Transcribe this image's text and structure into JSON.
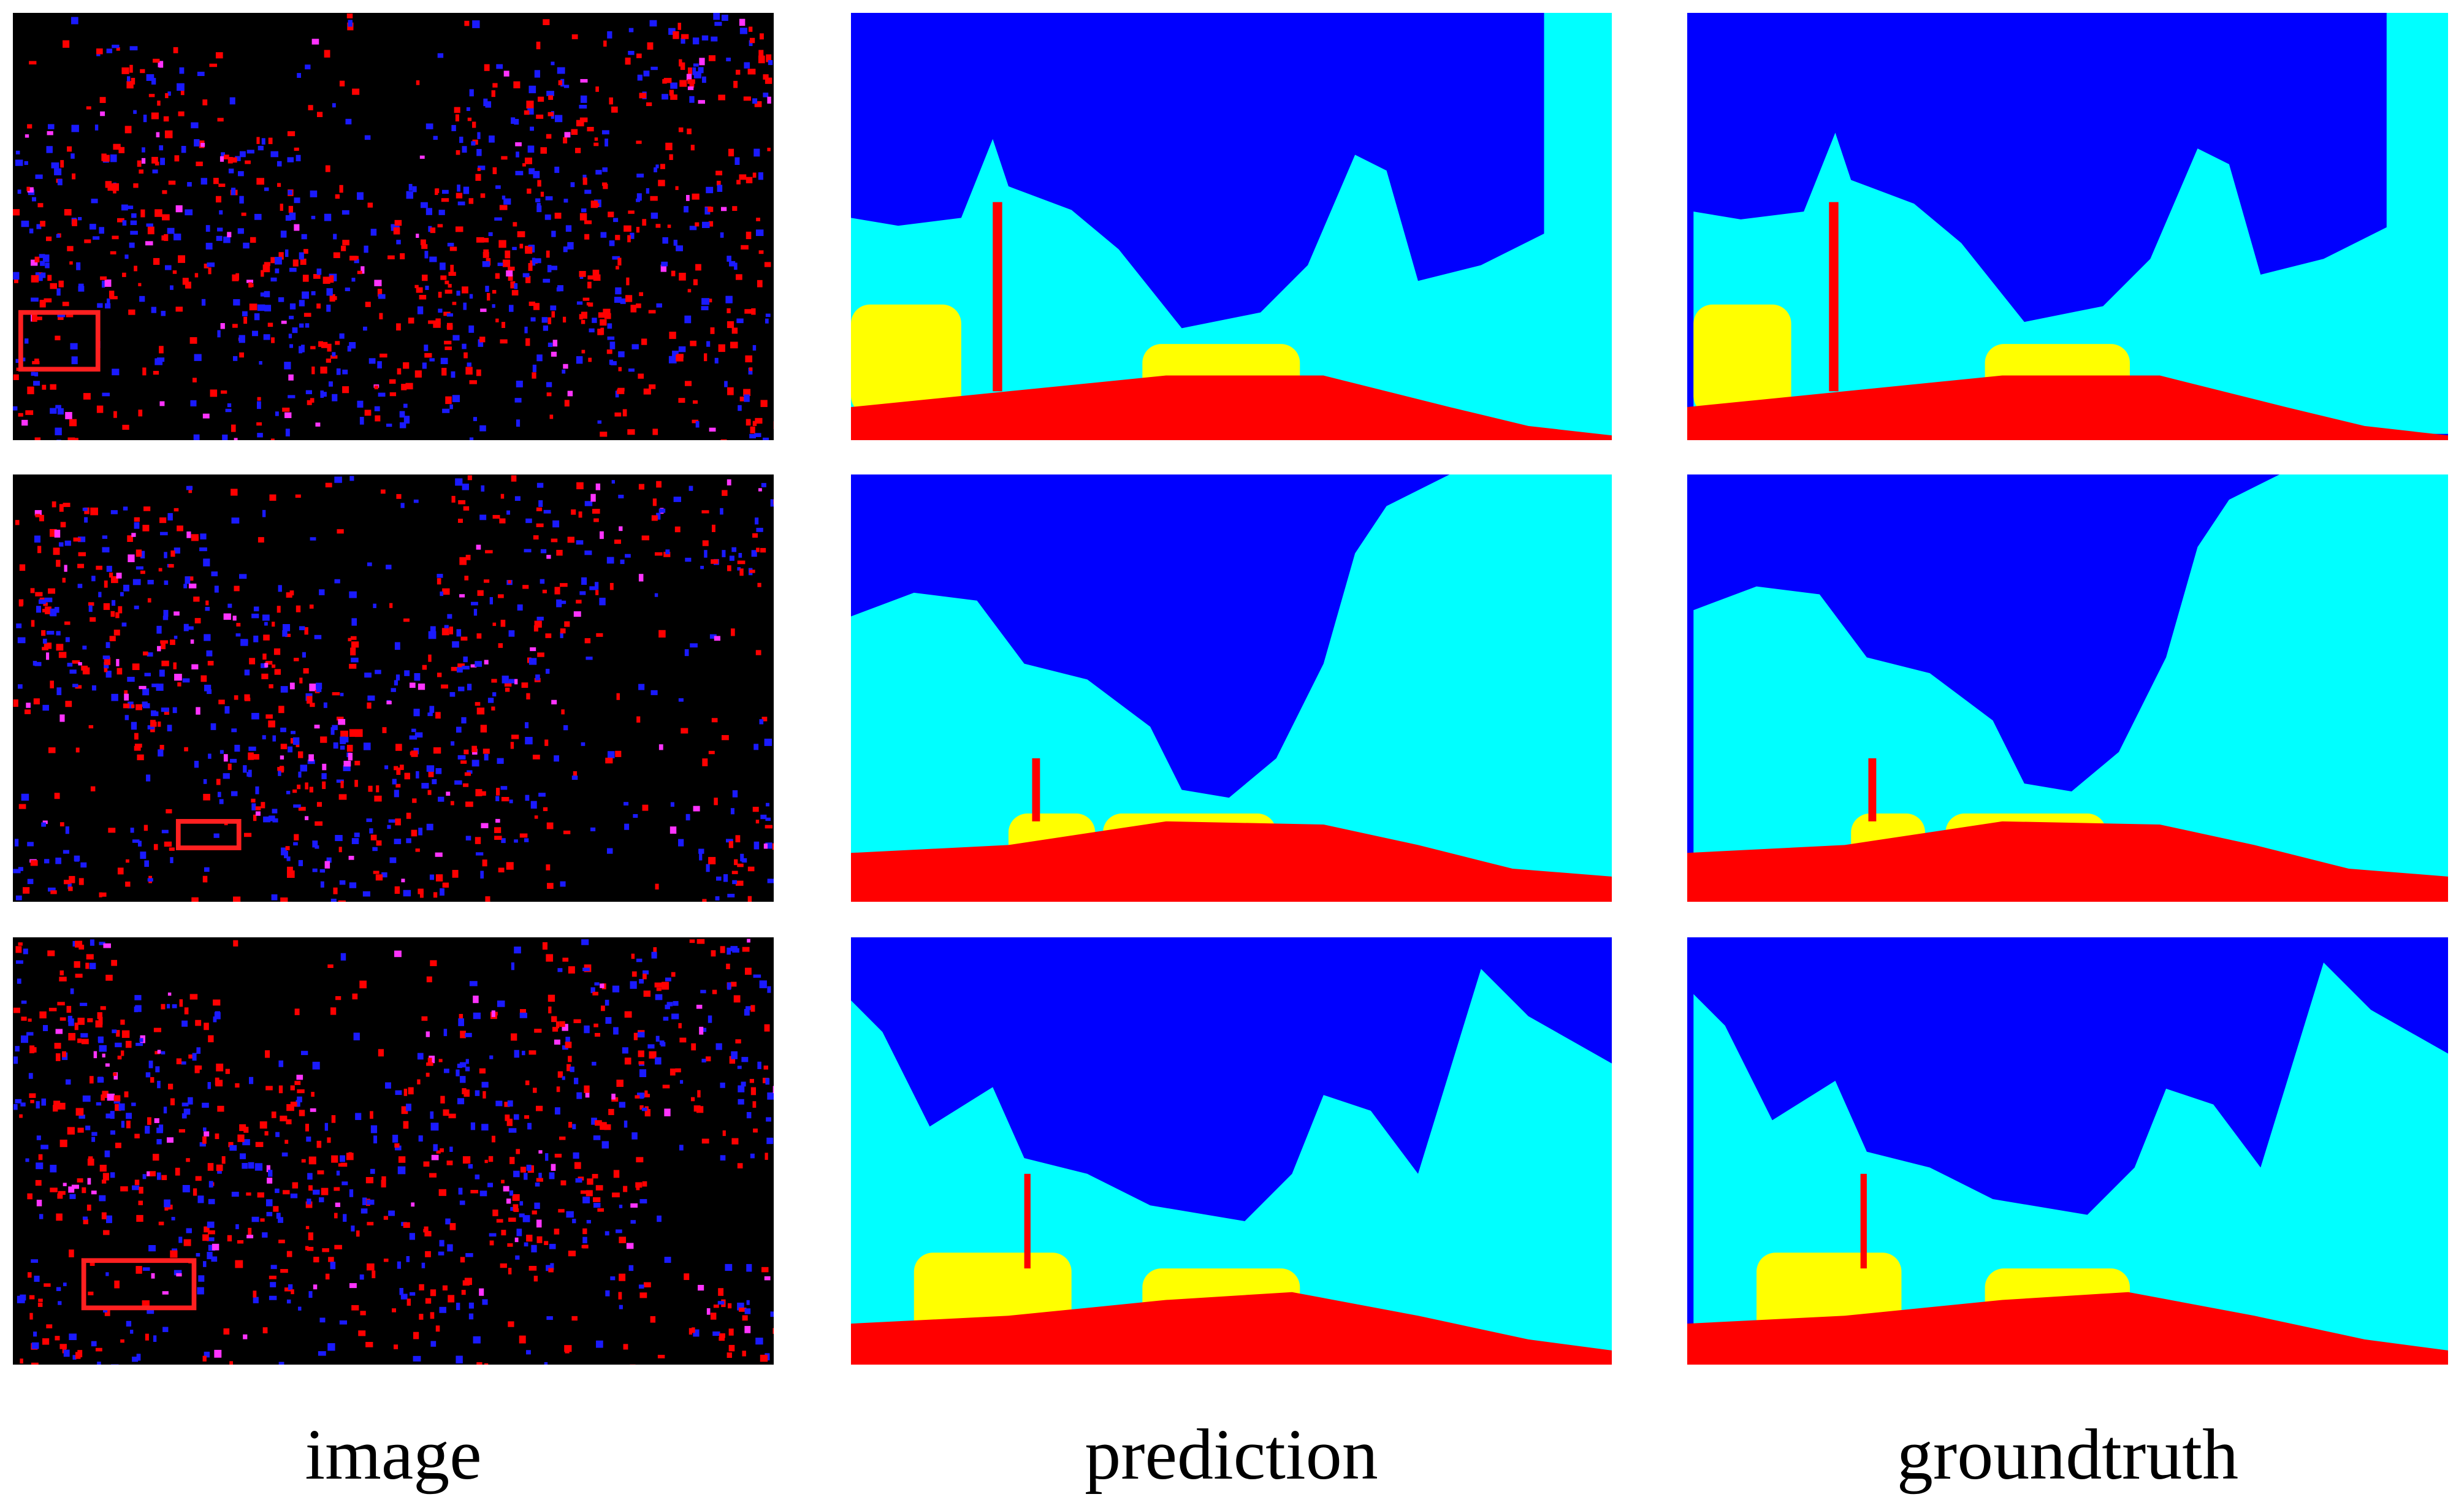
{
  "columns": [
    {
      "label": "image"
    },
    {
      "label": "prediction"
    },
    {
      "label": "groundtruth"
    }
  ]
}
